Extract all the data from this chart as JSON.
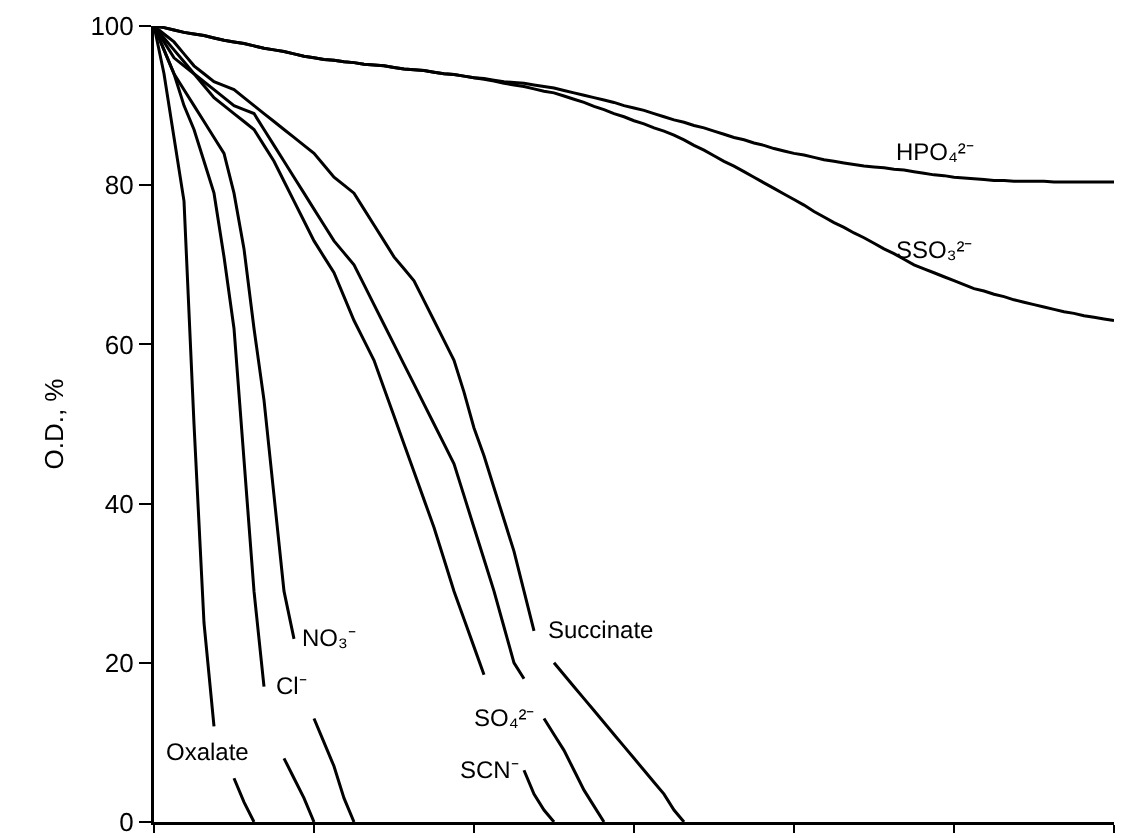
{
  "chart_data": {
    "type": "line",
    "ylabel": "O.D., %",
    "ylim": [
      0,
      100
    ],
    "yticks": [
      0,
      20,
      40,
      60,
      80,
      100
    ],
    "tick_labels": "y",
    "grid": false,
    "legend": false,
    "marker": "none",
    "line_style": "solid",
    "categories": [
      null,
      null,
      null,
      null,
      null,
      null,
      null,
      null,
      null,
      null,
      null,
      null,
      null,
      null,
      null,
      null,
      null,
      null,
      null,
      null,
      null,
      null,
      null,
      null,
      null,
      null,
      null,
      null,
      null,
      null,
      null,
      null,
      null,
      null,
      null,
      null,
      null,
      null,
      null,
      null,
      null,
      null,
      null,
      null,
      null,
      null,
      null,
      null,
      null,
      null,
      null,
      null,
      null,
      null,
      null,
      null,
      null,
      null,
      null,
      null,
      null,
      null,
      null,
      null,
      null,
      null,
      null,
      null,
      null,
      null,
      null,
      null,
      null,
      null,
      null,
      null,
      null,
      null,
      null,
      null,
      null,
      null,
      null,
      null,
      null,
      null,
      null,
      null,
      null,
      null,
      null,
      null,
      null,
      null,
      null,
      null,
      null
    ],
    "series": [
      {
        "name": "Oxalate",
        "color": "#000000",
        "values": [
          100,
          94,
          86,
          78,
          50,
          25,
          12,
          null,
          5.5,
          2.5,
          0,
          null,
          null,
          null,
          null,
          null,
          null,
          null,
          null,
          null,
          null,
          null,
          null,
          null,
          null,
          null,
          null,
          null,
          null,
          null,
          null,
          null,
          null,
          null,
          null,
          null,
          null,
          null,
          null,
          null,
          null,
          null,
          null,
          null,
          null,
          null,
          null,
          null,
          null,
          null,
          null,
          null,
          null,
          null,
          null,
          null,
          null,
          null,
          null,
          null,
          null,
          null,
          null,
          null,
          null,
          null,
          null,
          null,
          null,
          null,
          null,
          null,
          null,
          null,
          null,
          null,
          null,
          null,
          null,
          null,
          null,
          null,
          null,
          null,
          null,
          null,
          null,
          null,
          null,
          null,
          null,
          null,
          null,
          null,
          null,
          null,
          null
        ]
      },
      {
        "name": "Cl⁻",
        "color": "#000000",
        "values": [
          100,
          97,
          94,
          90,
          87,
          83,
          79,
          71,
          62,
          45.5,
          29,
          17,
          null,
          8,
          5.5,
          3,
          0,
          null,
          null,
          null,
          null,
          null,
          null,
          null,
          null,
          null,
          null,
          null,
          null,
          null,
          null,
          null,
          null,
          null,
          null,
          null,
          null,
          null,
          null,
          null,
          null,
          null,
          null,
          null,
          null,
          null,
          null,
          null,
          null,
          null,
          null,
          null,
          null,
          null,
          null,
          null,
          null,
          null,
          null,
          null,
          null,
          null,
          null,
          null,
          null,
          null,
          null,
          null,
          null,
          null,
          null,
          null,
          null,
          null,
          null,
          null,
          null,
          null,
          null,
          null,
          null,
          null,
          null,
          null,
          null,
          null,
          null,
          null,
          null,
          null,
          null,
          null,
          null,
          null,
          null,
          null,
          null
        ]
      },
      {
        "name": "NO₃⁻",
        "color": "#000000",
        "values": [
          100,
          97,
          94,
          92,
          90,
          88,
          86,
          84,
          79,
          72,
          62,
          53,
          41,
          29,
          23,
          null,
          13,
          10,
          7,
          3,
          0,
          null,
          null,
          null,
          null,
          null,
          null,
          null,
          null,
          null,
          null,
          null,
          null,
          null,
          null,
          null,
          null,
          null,
          null,
          null,
          null,
          null,
          null,
          null,
          null,
          null,
          null,
          null,
          null,
          null,
          null,
          null,
          null,
          null,
          null,
          null,
          null,
          null,
          null,
          null,
          null,
          null,
          null,
          null,
          null,
          null,
          null,
          null,
          null,
          null,
          null,
          null,
          null,
          null,
          null,
          null,
          null,
          null,
          null,
          null,
          null,
          null,
          null,
          null,
          null,
          null,
          null,
          null,
          null,
          null,
          null,
          null,
          null,
          null,
          null,
          null,
          null
        ]
      },
      {
        "name": "SCN⁻",
        "color": "#000000",
        "values": [
          100,
          98,
          96,
          95,
          94,
          92.5,
          91,
          90,
          89,
          88,
          87,
          85,
          83,
          80.5,
          78,
          75.5,
          73,
          71,
          69,
          66,
          63,
          60.5,
          58,
          54.5,
          51,
          47.5,
          44,
          40.5,
          37,
          33,
          29,
          25.5,
          22,
          18.5,
          null,
          null,
          null,
          6.5,
          3.5,
          1.5,
          0,
          null,
          null,
          null,
          null,
          null,
          null,
          null,
          null,
          null,
          null,
          null,
          null,
          null,
          null,
          null,
          null,
          null,
          null,
          null,
          null,
          null,
          null,
          null,
          null,
          null,
          null,
          null,
          null,
          null,
          null,
          null,
          null,
          null,
          null,
          null,
          null,
          null,
          null,
          null,
          null,
          null,
          null,
          null,
          null,
          null,
          null,
          null,
          null,
          null,
          null,
          null,
          null,
          null,
          null,
          null,
          null
        ]
      },
      {
        "name": "SO₄²⁻",
        "color": "#000000",
        "values": [
          100,
          98.5,
          97,
          95.5,
          94,
          93,
          92,
          91,
          90,
          89.5,
          89,
          87,
          85,
          83,
          81,
          79,
          77,
          75,
          73,
          71.5,
          70,
          67.5,
          65,
          62.5,
          60,
          57.5,
          55,
          52.5,
          50,
          47.5,
          45,
          41,
          37,
          33,
          29,
          24.5,
          20,
          18,
          null,
          13,
          11,
          9,
          6.5,
          4,
          2,
          0,
          null,
          null,
          null,
          null,
          null,
          null,
          null,
          null,
          null,
          null,
          null,
          null,
          null,
          null,
          null,
          null,
          null,
          null,
          null,
          null,
          null,
          null,
          null,
          null,
          null,
          null,
          null,
          null,
          null,
          null,
          null,
          null,
          null,
          null,
          null,
          null,
          null,
          null,
          null,
          null,
          null,
          null,
          null,
          null,
          null,
          null,
          null,
          null,
          null,
          null,
          null
        ]
      },
      {
        "name": "Succinate",
        "color": "#000000",
        "values": [
          100,
          99,
          98,
          96.5,
          95,
          94,
          93,
          92.5,
          92,
          91,
          90,
          89,
          88,
          87,
          86,
          85,
          84,
          82.5,
          81,
          80,
          79,
          77,
          75,
          73,
          71,
          69.5,
          68,
          65.5,
          63,
          60.5,
          58,
          54,
          49.5,
          46,
          42,
          38,
          34,
          29,
          24,
          null,
          20,
          18.5,
          17,
          15.5,
          14,
          12.5,
          11,
          9.5,
          8,
          6.5,
          5,
          3.5,
          1.5,
          0,
          null,
          null,
          null,
          null,
          null,
          null,
          null,
          null,
          null,
          null,
          null,
          null,
          null,
          null,
          null,
          null,
          null,
          null,
          null,
          null,
          null,
          null,
          null,
          null,
          null,
          null,
          null,
          null,
          null,
          null,
          null,
          null,
          null,
          null,
          null,
          null,
          null,
          null,
          null,
          null,
          null,
          null,
          null
        ]
      },
      {
        "name": "HPO₄²⁻",
        "color": "#000000",
        "values": [
          100,
          99.8,
          99.5,
          99.2,
          99,
          98.8,
          98.5,
          98.2,
          98,
          97.8,
          97.5,
          97.2,
          97,
          96.8,
          96.5,
          96.2,
          96,
          95.8,
          95.7,
          95.5,
          95.4,
          95.2,
          95.1,
          95,
          94.8,
          94.6,
          94.5,
          94.4,
          94.2,
          94,
          93.9,
          93.7,
          93.5,
          93.4,
          93.2,
          93,
          92.9,
          92.8,
          92.6,
          92.4,
          92.2,
          91.9,
          91.6,
          91.3,
          91,
          90.7,
          90.4,
          90,
          89.7,
          89.4,
          89,
          88.6,
          88.2,
          87.9,
          87.5,
          87.2,
          86.8,
          86.4,
          86,
          85.7,
          85.3,
          85,
          84.6,
          84.3,
          84,
          83.8,
          83.5,
          83.2,
          83,
          82.8,
          82.6,
          82.4,
          82.3,
          82.2,
          82,
          81.9,
          81.7,
          81.5,
          81.3,
          81.2,
          81,
          80.9,
          80.8,
          80.7,
          80.6,
          80.6,
          80.5,
          80.5,
          80.5,
          80.5,
          80.4,
          80.4,
          80.4,
          80.4,
          80.4,
          80.4,
          80.4
        ]
      },
      {
        "name": "SSO₃²⁻",
        "color": "#000000",
        "values": [
          100,
          99.8,
          99.5,
          99.2,
          99,
          98.8,
          98.5,
          98.2,
          98,
          97.8,
          97.5,
          97.2,
          97,
          96.8,
          96.5,
          96.2,
          96,
          95.8,
          95.7,
          95.5,
          95.4,
          95.2,
          95.1,
          95,
          94.8,
          94.6,
          94.5,
          94.4,
          94.2,
          94,
          93.9,
          93.7,
          93.5,
          93.3,
          93.1,
          92.8,
          92.6,
          92.4,
          92.1,
          91.8,
          91.6,
          91.2,
          90.8,
          90.4,
          89.9,
          89.5,
          89,
          88.6,
          88.1,
          87.7,
          87.2,
          86.8,
          86.3,
          85.7,
          85,
          84.4,
          83.7,
          83,
          82.4,
          81.7,
          81,
          80.3,
          79.6,
          78.9,
          78.2,
          77.5,
          76.7,
          76,
          75.3,
          74.7,
          74,
          73.4,
          72.7,
          72,
          71.4,
          70.7,
          70,
          69.5,
          69,
          68.5,
          68,
          67.5,
          67,
          66.7,
          66.3,
          66,
          65.6,
          65.3,
          65,
          64.7,
          64.4,
          64.1,
          63.9,
          63.6,
          63.4,
          63.2,
          63
        ]
      }
    ]
  }
}
